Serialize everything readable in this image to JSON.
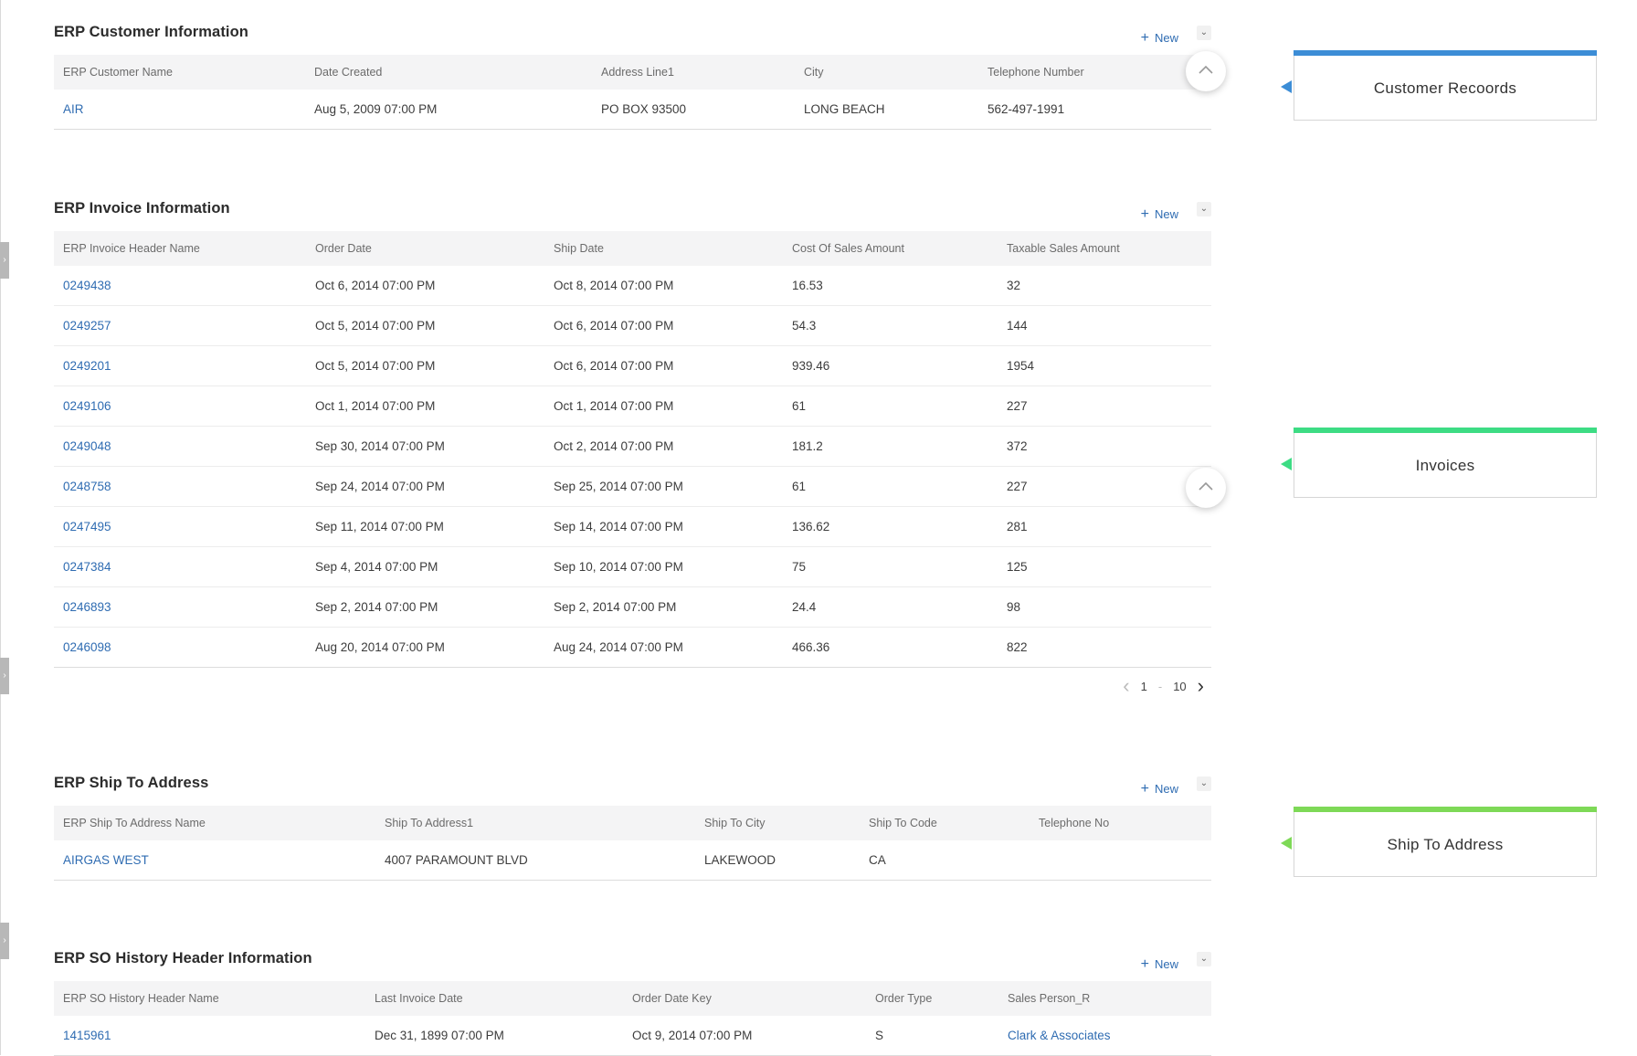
{
  "sections": {
    "customer": {
      "title": "ERP Customer Information",
      "new_label": "New",
      "columns": [
        "ERP Customer Name",
        "Date Created",
        "Address Line1",
        "City",
        "Telephone Number"
      ],
      "rows": [
        [
          "AIR",
          "Aug 5, 2009 07:00 PM",
          "PO BOX 93500",
          "LONG BEACH",
          "562-497-1991"
        ]
      ]
    },
    "invoice": {
      "title": "ERP Invoice Information",
      "new_label": "New",
      "columns": [
        "ERP Invoice Header Name",
        "Order Date",
        "Ship Date",
        "Cost Of Sales Amount",
        "Taxable Sales Amount"
      ],
      "rows": [
        [
          "0249438",
          "Oct 6, 2014 07:00 PM",
          "Oct 8, 2014 07:00 PM",
          "16.53",
          "32"
        ],
        [
          "0249257",
          "Oct 5, 2014 07:00 PM",
          "Oct 6, 2014 07:00 PM",
          "54.3",
          "144"
        ],
        [
          "0249201",
          "Oct 5, 2014 07:00 PM",
          "Oct 6, 2014 07:00 PM",
          "939.46",
          "1954"
        ],
        [
          "0249106",
          "Oct 1, 2014 07:00 PM",
          "Oct 1, 2014 07:00 PM",
          "61",
          "227"
        ],
        [
          "0249048",
          "Sep 30, 2014 07:00 PM",
          "Oct 2, 2014 07:00 PM",
          "181.2",
          "372"
        ],
        [
          "0248758",
          "Sep 24, 2014 07:00 PM",
          "Sep 25, 2014 07:00 PM",
          "61",
          "227"
        ],
        [
          "0247495",
          "Sep 11, 2014 07:00 PM",
          "Sep 14, 2014 07:00 PM",
          "136.62",
          "281"
        ],
        [
          "0247384",
          "Sep 4, 2014 07:00 PM",
          "Sep 10, 2014 07:00 PM",
          "75",
          "125"
        ],
        [
          "0246893",
          "Sep 2, 2014 07:00 PM",
          "Sep 2, 2014 07:00 PM",
          "24.4",
          "98"
        ],
        [
          "0246098",
          "Aug 20, 2014 07:00 PM",
          "Aug 24, 2014 07:00 PM",
          "466.36",
          "822"
        ]
      ],
      "pager": {
        "from": "1",
        "separator": "-",
        "to": "10"
      }
    },
    "ship_to": {
      "title": "ERP Ship To Address",
      "new_label": "New",
      "columns": [
        "ERP Ship To Address Name",
        "Ship To Address1",
        "Ship To City",
        "Ship To Code",
        "Telephone No"
      ],
      "rows": [
        [
          "AIRGAS WEST",
          "4007 PARAMOUNT BLVD",
          "LAKEWOOD",
          "CA",
          ""
        ]
      ]
    },
    "so_history": {
      "title": "ERP SO History Header Information",
      "new_label": "New",
      "columns": [
        "ERP SO History Header Name",
        "Last Invoice Date",
        "Order Date Key",
        "Order Type",
        "Sales Person_R"
      ],
      "rows": [
        [
          "1415961",
          "Dec 31, 1899 07:00 PM",
          "Oct 9, 2014 07:00 PM",
          "S",
          "Clark & Associates"
        ]
      ]
    }
  },
  "callouts": [
    {
      "label": "Customer Recoords",
      "color": "#3c8dd6"
    },
    {
      "label": "Invoices",
      "color": "#3ddc84"
    },
    {
      "label": "Ship To Address",
      "color": "#7ed957"
    }
  ],
  "icons": {
    "new": "plus-icon",
    "collapse": "chevron-down-icon",
    "scroll_top": "chevron-up-icon",
    "pager_prev": "chevron-left-icon",
    "pager_next": "chevron-right-icon",
    "rail_tab": "chevron-right-icon"
  },
  "colors": {
    "link": "#2f6cb2",
    "header_bg": "#f4f4f5"
  }
}
